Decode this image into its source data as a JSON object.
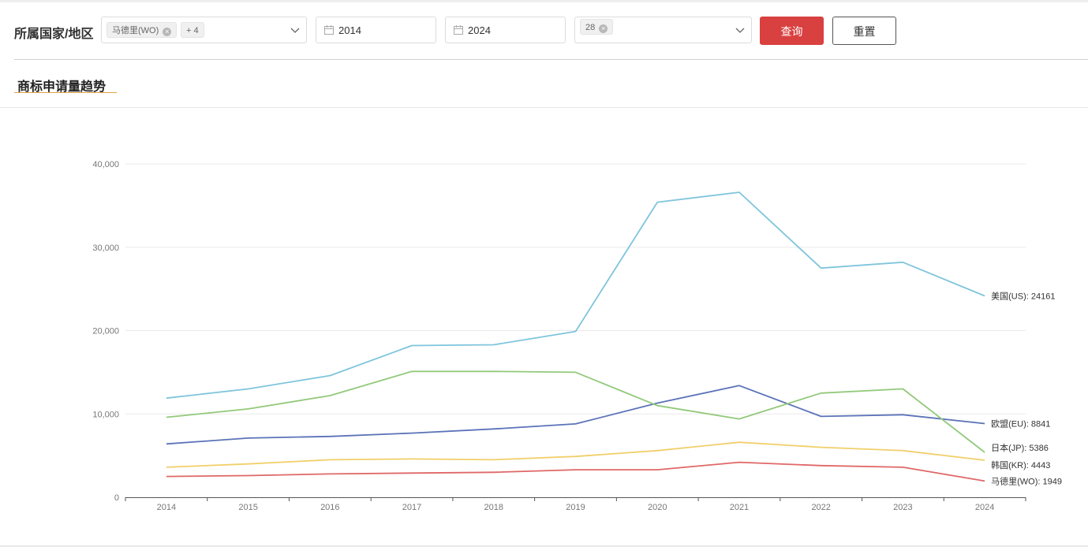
{
  "filters": {
    "label": "所属国家/地区",
    "country_tags": [
      "马德里(WO)",
      "+ 4"
    ],
    "start_year": "2014",
    "end_year": "2024",
    "class_tags": [
      "28"
    ],
    "query_label": "查询",
    "reset_label": "重置"
  },
  "section": {
    "title": "商标申请量趋势"
  },
  "chart_data": {
    "type": "line",
    "x": [
      "2014",
      "2015",
      "2016",
      "2017",
      "2018",
      "2019",
      "2020",
      "2021",
      "2022",
      "2023",
      "2024"
    ],
    "ylim": [
      0,
      40000
    ],
    "yticks": [
      0,
      10000,
      20000,
      30000,
      40000
    ],
    "ytick_labels": [
      "0",
      "10,000",
      "20,000",
      "30,000",
      "40,000"
    ],
    "grid": true,
    "legend": "end-labels",
    "series": [
      {
        "name": "美国(US)",
        "color": "#7fc5dc",
        "end_label": "美国(US): 24161",
        "values": [
          11900,
          13000,
          14600,
          18200,
          18300,
          19900,
          35400,
          36600,
          27500,
          28200,
          24161
        ]
      },
      {
        "name": "欧盟(EU)",
        "color": "#5b72b8",
        "end_label": "欧盟(EU): 8841",
        "values": [
          6400,
          7100,
          7300,
          7700,
          8200,
          8800,
          11300,
          13400,
          9700,
          9900,
          8841
        ]
      },
      {
        "name": "日本(JP)",
        "color": "#92c97a",
        "end_label": "日本(JP): 5386",
        "values": [
          9600,
          10600,
          12200,
          15100,
          15100,
          15000,
          11000,
          9400,
          12500,
          13000,
          5386
        ]
      },
      {
        "name": "韩国(KR)",
        "color": "#f1cf6a",
        "end_label": "韩国(KR): 4443",
        "values": [
          3600,
          4000,
          4500,
          4600,
          4500,
          4900,
          5600,
          6600,
          6000,
          5600,
          4443
        ]
      },
      {
        "name": "马德里(WO)",
        "color": "#e06767",
        "end_label": "马德里(WO): 1949",
        "values": [
          2500,
          2600,
          2800,
          2900,
          3000,
          3300,
          3300,
          4200,
          3800,
          3600,
          1949
        ]
      }
    ]
  }
}
